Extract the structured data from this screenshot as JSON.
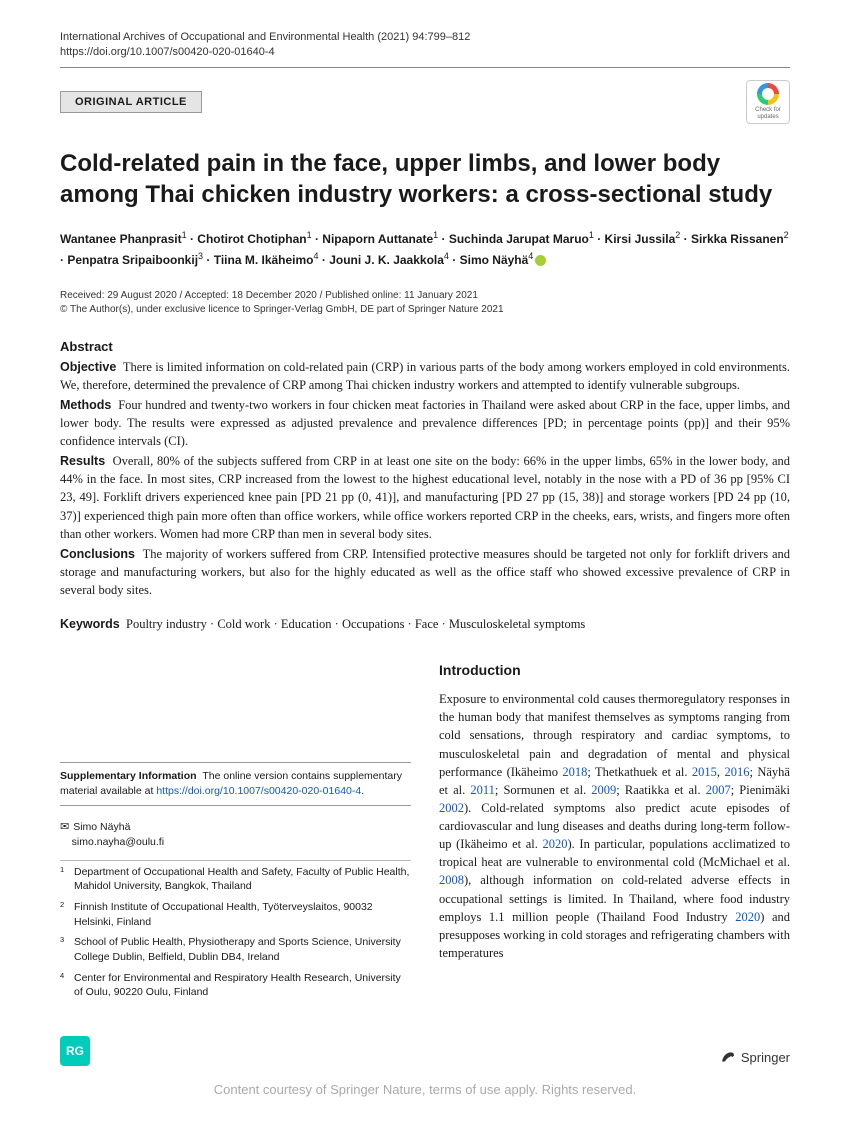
{
  "header": {
    "journal_citation": "International Archives of Occupational and Environmental Health (2021) 94:799–812",
    "doi": "https://doi.org/10.1007/s00420-020-01640-4",
    "article_type": "ORIGINAL ARTICLE",
    "crossmark_line1": "Check for",
    "crossmark_line2": "updates"
  },
  "title": "Cold-related pain in the face, upper limbs, and lower body among Thai chicken industry workers: a cross-sectional study",
  "authors_html": "Wantanee Phanprasit<sup>1</sup> · Chotirot Chotiphan<sup>1</sup> · Nipaporn Auttanate<sup>1</sup> · Suchinda Jarupat Maruo<sup>1</sup> · Kirsi Jussila<sup>2</sup> · Sirkka Rissanen<sup>2</sup> · Penpatra Sripaiboonkij<sup>3</sup> · Tiina M. Ikäheimo<sup>4</sup> · Jouni J. K. Jaakkola<sup>4</sup> · Simo Näyhä<sup>4</sup>",
  "dates": {
    "line1": "Received: 29 August 2020 / Accepted: 18 December 2020 / Published online: 11 January 2021",
    "line2": "© The Author(s), under exclusive licence to Springer-Verlag GmbH, DE part of Springer Nature 2021"
  },
  "abstract": {
    "heading": "Abstract",
    "objective_label": "Objective",
    "objective": "There is limited information on cold-related pain (CRP) in various parts of the body among workers employed in cold environments. We, therefore, determined the prevalence of CRP among Thai chicken industry workers and attempted to identify vulnerable subgroups.",
    "methods_label": "Methods",
    "methods": "Four hundred and twenty-two workers in four chicken meat factories in Thailand were asked about CRP in the face, upper limbs, and lower body. The results were expressed as adjusted prevalence and prevalence differences [PD; in percentage points (pp)] and their 95% confidence intervals (CI).",
    "results_label": "Results",
    "results": "Overall, 80% of the subjects suffered from CRP in at least one site on the body: 66% in the upper limbs, 65% in the lower body, and 44% in the face. In most sites, CRP increased from the lowest to the highest educational level, notably in the nose with a PD of 36 pp [95% CI 23, 49]. Forklift drivers experienced knee pain [PD 21 pp (0, 41)], and manufacturing [PD 27 pp (15, 38)] and storage workers [PD 24 pp (10, 37)] experienced thigh pain more often than office workers, while office workers reported CRP in the cheeks, ears, wrists, and fingers more often than other workers. Women had more CRP than men in several body sites.",
    "conclusions_label": "Conclusions",
    "conclusions": "The majority of workers suffered from CRP. Intensified protective measures should be targeted not only for forklift drivers and storage and manufacturing workers, but also for the highly educated as well as the office staff who showed excessive prevalence of CRP in several body sites."
  },
  "keywords": {
    "label": "Keywords",
    "text": "Poultry industry · Cold work · Education · Occupations · Face · Musculoskeletal symptoms"
  },
  "supplementary": {
    "label": "Supplementary Information",
    "text": "The online version contains supplementary material available at ",
    "link": "https://doi.org/10.1007/s00420-020-01640-4"
  },
  "correspondence": {
    "name": "Simo Näyhä",
    "email": "simo.nayha@oulu.fi"
  },
  "affiliations": [
    {
      "num": "1",
      "text": "Department of Occupational Health and Safety, Faculty of Public Health, Mahidol University, Bangkok, Thailand"
    },
    {
      "num": "2",
      "text": "Finnish Institute of Occupational Health, Työterveyslaitos, 90032 Helsinki, Finland"
    },
    {
      "num": "3",
      "text": "School of Public Health, Physiotherapy and Sports Science, University College Dublin, Belfield, Dublin DB4, Ireland"
    },
    {
      "num": "4",
      "text": "Center for Environmental and Respiratory Health Research, University of Oulu, 90220 Oulu, Finland"
    }
  ],
  "introduction": {
    "heading": "Introduction",
    "body_html": "Exposure to environmental cold causes thermoregulatory responses in the human body that manifest themselves as symptoms ranging from cold sensations, through respiratory and cardiac symptoms, to musculoskeletal pain and degradation of mental and physical performance (Ikäheimo <span class='cite'>2018</span>; Thetkathuek et al. <span class='cite'>2015</span>, <span class='cite'>2016</span>; Näyhä et al. <span class='cite'>2011</span>; Sormunen et al. <span class='cite'>2009</span>; Raatikka et al. <span class='cite'>2007</span>; Pienimäki <span class='cite'>2002</span>). Cold-related symptoms also predict acute episodes of cardiovascular and lung diseases and deaths during long-term follow-up (Ikäheimo et al. <span class='cite'>2020</span>). In particular, populations acclimatized to tropical heat are vulnerable to environmental cold (McMichael et al. <span class='cite'>2008</span>), although information on cold-related adverse effects in occupational settings is limited. In Thailand, where food industry employs 1.1 million people (Thailand Food Industry <span class='cite'>2020</span>) and presupposes working in cold storages and refrigerating chambers with temperatures"
  },
  "footer": {
    "rg": "RG",
    "publisher": "Springer",
    "courtesy": "Content courtesy of Springer Nature, terms of use apply. Rights reserved."
  }
}
